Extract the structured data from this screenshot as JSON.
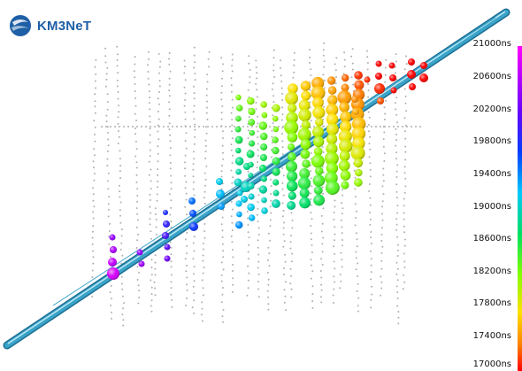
{
  "logo": {
    "text": "KM3NeT",
    "icon": "km3net-globe-icon",
    "color": "#1e5fa6"
  },
  "colorbar": {
    "unit": "ns",
    "ticks": [
      "21000ns",
      "20600ns",
      "20200ns",
      "19800ns",
      "19400ns",
      "19000ns",
      "18600ns",
      "18200ns",
      "17800ns",
      "17400ns",
      "17000ns"
    ],
    "min": 17000,
    "max": 21000
  },
  "track_color": "#3aa3c8",
  "colors": {
    "background": "#ffffff",
    "inactive_pmt": "#b0b0b0"
  }
}
